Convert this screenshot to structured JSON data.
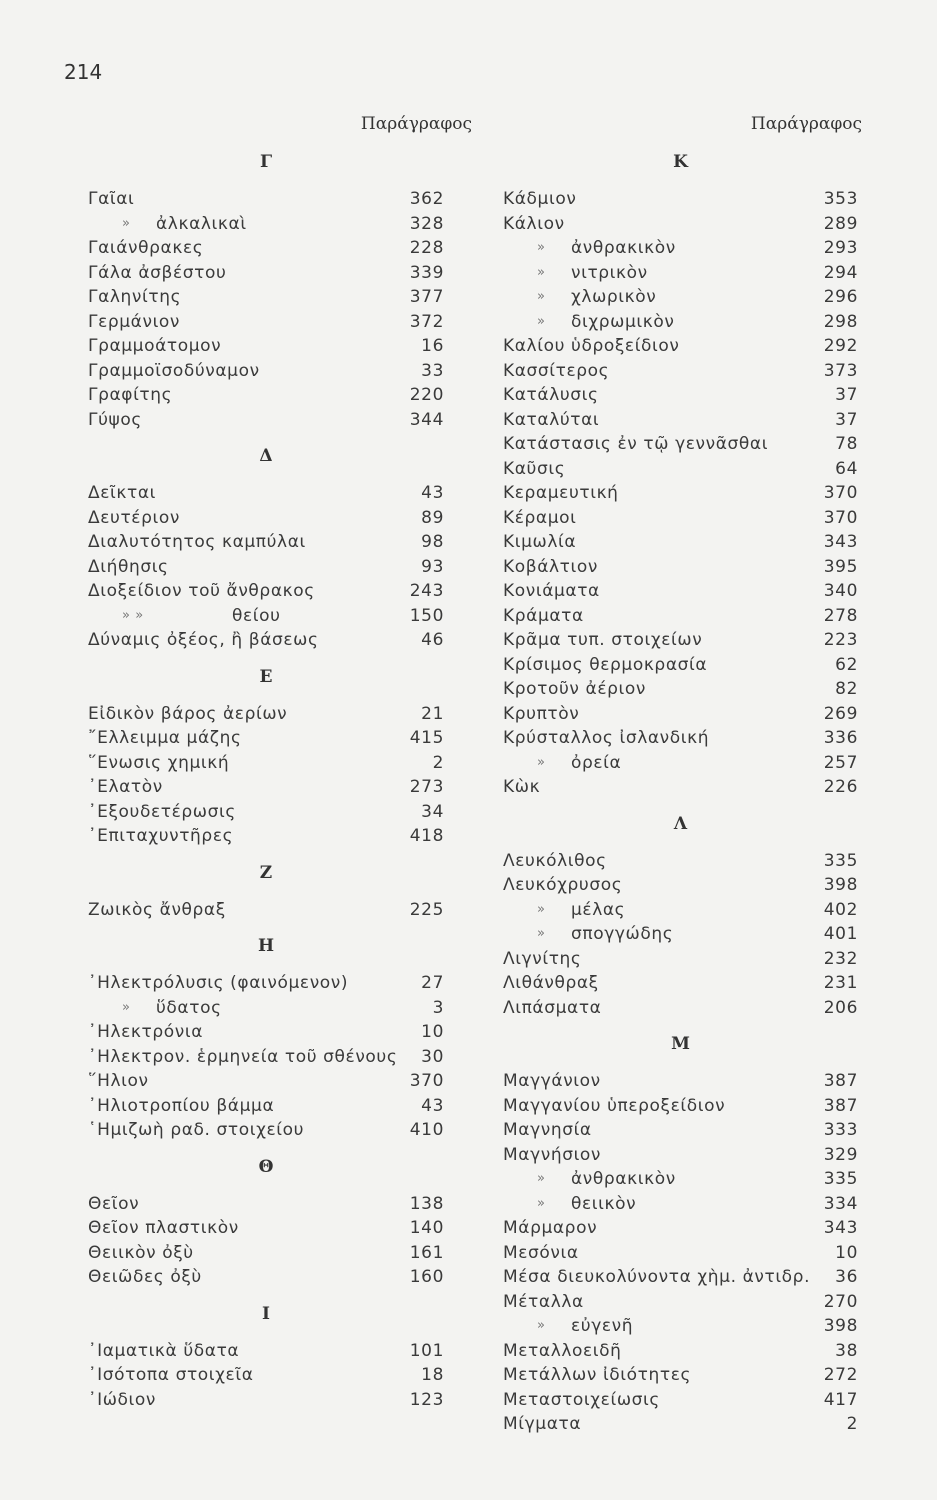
{
  "page_number": "214",
  "columns": [
    {
      "header": "Παράγραφος",
      "sections": [
        {
          "letter": "Γ",
          "entries": [
            {
              "term": "Γαῖαι",
              "page": "362"
            },
            {
              "ditto": "»",
              "term": "ἀλκαλικαὶ",
              "page": "328"
            },
            {
              "term": "Γαιάνθρακες",
              "page": "228"
            },
            {
              "term": "Γάλα ἀσβέστου",
              "page": "339"
            },
            {
              "term": "Γαληνίτης",
              "page": "377"
            },
            {
              "term": "Γερμάνιον",
              "page": "372"
            },
            {
              "term": "Γραμμοάτομον",
              "page": "16"
            },
            {
              "term": "Γραμμοϊσοδύναμον",
              "page": "33"
            },
            {
              "term": "Γραφίτης",
              "page": "220"
            },
            {
              "term": "Γύψος",
              "page": "344"
            }
          ]
        },
        {
          "letter": "Δ",
          "entries": [
            {
              "term": "Δεῖκται",
              "page": "43"
            },
            {
              "term": "Δευτέριον",
              "page": "89"
            },
            {
              "term": "Διαλυτότητος καμπύλαι",
              "page": "98"
            },
            {
              "term": "Διήθησις",
              "page": "93"
            },
            {
              "term": "Διοξείδιον τοῦ ἄνθρακος",
              "page": "243"
            },
            {
              "ditto": "»        »",
              "term": "θείου",
              "page": "150"
            },
            {
              "term": "Δύναμις ὀξέος, ἢ βάσεως",
              "page": "46"
            }
          ]
        },
        {
          "letter": "Ε",
          "entries": [
            {
              "term": "Εἰδικὸν βάρος ἀερίων",
              "page": "21"
            },
            {
              "term": "῎Ελλειμμα μάζης",
              "page": "415"
            },
            {
              "term": "῞Ενωσις χημική",
              "page": "2"
            },
            {
              "term": "᾿Ελατὸν",
              "page": "273"
            },
            {
              "term": "᾿Εξουδετέρωσις",
              "page": "34"
            },
            {
              "term": "᾿Επιταχυντῆρες",
              "page": "418"
            }
          ]
        },
        {
          "letter": "Ζ",
          "entries": [
            {
              "term": "Ζωικὸς ἄνθραξ",
              "page": "225"
            }
          ]
        },
        {
          "letter": "Η",
          "entries": [
            {
              "term": "᾿Ηλεκτρόλυσις (φαινόμενον)",
              "page": "27"
            },
            {
              "ditto": "»",
              "term": "ὕδατος",
              "page": "3"
            },
            {
              "term": "᾿Ηλεκτρόνια",
              "page": "10"
            },
            {
              "term": "᾿Ηλεκτρον. ἑρμηνεία τοῦ σθένους",
              "page": "30"
            },
            {
              "term": "῞Ηλιον",
              "page": "370"
            },
            {
              "term": "᾿Ηλιοτροπίου βάμμα",
              "page": "43"
            },
            {
              "term": "῾Ημιζωὴ ραδ. στοιχείου",
              "page": "410"
            }
          ]
        },
        {
          "letter": "Θ",
          "entries": [
            {
              "term": "Θεῖον",
              "page": "138"
            },
            {
              "term": "Θεῖον πλαστικὸν",
              "page": "140"
            },
            {
              "term": "Θειικὸν ὀξὺ",
              "page": "161"
            },
            {
              "term": "Θειῶδες ὀξὺ",
              "page": "160"
            }
          ]
        },
        {
          "letter": "Ι",
          "entries": [
            {
              "term": "᾿Ιαματικὰ ὕδατα",
              "page": "101"
            },
            {
              "term": "᾿Ισότοπα στοιχεῖα",
              "page": "18"
            },
            {
              "term": "᾿Ιώδιον",
              "page": "123"
            }
          ]
        }
      ]
    },
    {
      "header": "Παράγραφος",
      "sections": [
        {
          "letter": "Κ",
          "entries": [
            {
              "term": "Κάδμιον",
              "page": "353"
            },
            {
              "term": "Κάλιον",
              "page": "289"
            },
            {
              "ditto": "»",
              "term": "ἀνθρακικὸν",
              "page": "293"
            },
            {
              "ditto": "»",
              "term": "νιτρικὸν",
              "page": "294"
            },
            {
              "ditto": "»",
              "term": "χλωρικὸν",
              "page": "296"
            },
            {
              "ditto": "»",
              "term": "διχρωμικὸν",
              "page": "298"
            },
            {
              "term": "Καλίου ὑδροξείδιον",
              "page": "292"
            },
            {
              "term": "Κασσίτερος",
              "page": "373"
            },
            {
              "term": "Κατάλυσις",
              "page": "37"
            },
            {
              "term": "Καταλύται",
              "page": "37"
            },
            {
              "term": "Κατάστασις ἐν τῷ γεννᾶσθαι",
              "page": "78"
            },
            {
              "term": "Καῦσις",
              "page": "64"
            },
            {
              "term": "Κεραμευτική",
              "page": "370"
            },
            {
              "term": "Κέραμοι",
              "page": "370"
            },
            {
              "term": "Κιμωλία",
              "page": "343"
            },
            {
              "term": "Κοβάλτιον",
              "page": "395"
            },
            {
              "term": "Κονιάματα",
              "page": "340"
            },
            {
              "term": "Κράματα",
              "page": "278"
            },
            {
              "term": "Κρᾶμα τυπ. στοιχείων",
              "page": "223"
            },
            {
              "term": "Κρίσιμος θερμοκρασία",
              "page": "62"
            },
            {
              "term": "Κροτοῦν ἀέριον",
              "page": "82"
            },
            {
              "term": "Κρυπτὸν",
              "page": "269"
            },
            {
              "term": "Κρύσταλλος ἰσλανδική",
              "page": "336"
            },
            {
              "ditto": "»",
              "term": "ὀρεία",
              "page": "257"
            },
            {
              "term": "Κὼκ",
              "page": "226"
            }
          ]
        },
        {
          "letter": "Λ",
          "entries": [
            {
              "term": "Λευκόλιθος",
              "page": "335"
            },
            {
              "term": "Λευκόχρυσος",
              "page": "398"
            },
            {
              "ditto": "»",
              "term": "μέλας",
              "page": "402"
            },
            {
              "ditto": "»",
              "term": "σπογγώδης",
              "page": "401"
            },
            {
              "term": "Λιγνίτης",
              "page": "232"
            },
            {
              "term": "Λιθάνθραξ",
              "page": "231"
            },
            {
              "term": "Λιπάσματα",
              "page": "206"
            }
          ]
        },
        {
          "letter": "Μ",
          "entries": [
            {
              "term": "Μαγγάνιον",
              "page": "387"
            },
            {
              "term": "Μαγγανίου ὑπεροξείδιον",
              "page": "387"
            },
            {
              "term": "Μαγνησία",
              "page": "333"
            },
            {
              "term": "Μαγνήσιον",
              "page": "329"
            },
            {
              "ditto": "»",
              "term": "ἀνθρακικὸν",
              "page": "335"
            },
            {
              "ditto": "»",
              "term": "θειικὸν",
              "page": "334"
            },
            {
              "term": "Μάρμαρον",
              "page": "343"
            },
            {
              "term": "Μεσόνια",
              "page": "10"
            },
            {
              "term": "Μέσα διευκολύνοντα χὴμ. ἀντιδρ.",
              "page": "36"
            },
            {
              "term": "Μέταλλα",
              "page": "270"
            },
            {
              "ditto": "»",
              "term": "εὐγενῆ",
              "page": "398"
            },
            {
              "term": "Μεταλλοειδῆ",
              "page": "38"
            },
            {
              "term": "Μετάλλων ἰδιότητες",
              "page": "272"
            },
            {
              "term": "Μεταστοιχείωσις",
              "page": "417"
            },
            {
              "term": "Μίγματα",
              "page": "2"
            }
          ]
        }
      ]
    }
  ]
}
